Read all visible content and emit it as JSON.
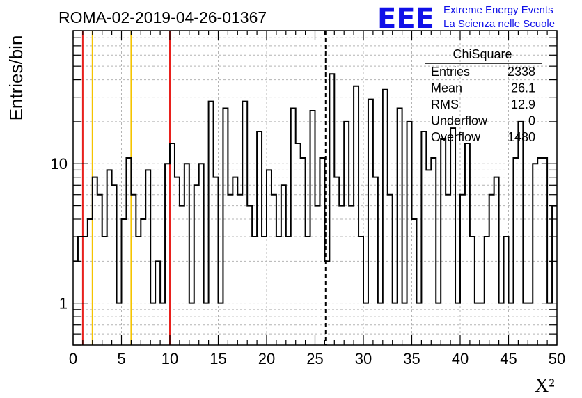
{
  "header": {
    "title": "ROMA-02-2019-04-26-01367",
    "logo_text": "EEE",
    "logo_line1": "Extreme Energy Events",
    "logo_line2": "La Scienza nelle Scuole"
  },
  "stats": {
    "title": "ChiSquare",
    "rows": [
      {
        "label": "Entries",
        "value": "2338"
      },
      {
        "label": "Mean",
        "value": "26.1"
      },
      {
        "label": "RMS",
        "value": "12.9"
      },
      {
        "label": "Underflow",
        "value": "0"
      },
      {
        "label": "Overflow",
        "value": "1480"
      }
    ]
  },
  "colors": {
    "logo": "#1010e8",
    "red_line": "#e8201c",
    "yellow_line": "#f5c400",
    "grid": "#b4b4b4",
    "histogram": "#000000"
  },
  "chart_data": {
    "type": "histogram",
    "title": "ROMA-02-2019-04-26-01367",
    "xlabel": "X²",
    "ylabel": "Entries/bin",
    "xlim": [
      0,
      50
    ],
    "ylim": [
      0.5,
      90
    ],
    "yscale": "log",
    "grid": true,
    "x_ticks": [
      0,
      5,
      10,
      15,
      20,
      25,
      30,
      35,
      40,
      45,
      50
    ],
    "x_tick_labels": [
      "0",
      "5",
      "10",
      "15",
      "20",
      "25",
      "30",
      "35",
      "40",
      "45",
      "50"
    ],
    "y_ticks": [
      1,
      10
    ],
    "y_tick_labels": [
      "1",
      "10"
    ],
    "bin_width": 0.5,
    "values": [
      2,
      3,
      3,
      4,
      8,
      6,
      3,
      9,
      7,
      1,
      4,
      11,
      6,
      3,
      4,
      9,
      1,
      2,
      1,
      10,
      14,
      8,
      5,
      10,
      1,
      7,
      10,
      1,
      28,
      8,
      1,
      25,
      6,
      8,
      6,
      28,
      5,
      3,
      17,
      3,
      9,
      6,
      3,
      7,
      3,
      25,
      14,
      11,
      3,
      24,
      5,
      11,
      2,
      44,
      8,
      5,
      20,
      5,
      36,
      3,
      1,
      29,
      8,
      1,
      34,
      6,
      1,
      25,
      1,
      20,
      4,
      1,
      17,
      9,
      11,
      1,
      15,
      6,
      18,
      1,
      6,
      14,
      3,
      1,
      1,
      3,
      6,
      8,
      1,
      3,
      1,
      11,
      20,
      1,
      1,
      10,
      11,
      11,
      1,
      5
    ],
    "reference_lines": [
      {
        "x": 1,
        "color": "red"
      },
      {
        "x": 2,
        "color": "yellow"
      },
      {
        "x": 6,
        "color": "yellow"
      },
      {
        "x": 10,
        "color": "red"
      },
      {
        "x": 26.1,
        "color": "black",
        "style": "dashed"
      }
    ]
  }
}
